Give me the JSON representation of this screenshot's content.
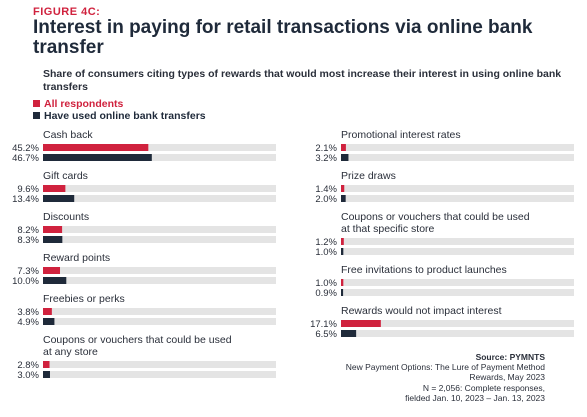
{
  "figure_label": "FIGURE 4C:",
  "chart_data": {
    "type": "bar",
    "title": "Interest in paying for retail transactions via online bank transfer",
    "subtitle": "Share of consumers citing types of rewards that would most increase their interest in using online bank transfers",
    "xlim": [
      0,
      100
    ],
    "legend_position": "top-left",
    "series": [
      {
        "name": "All respondents",
        "color": "#d0223e",
        "values": [
          45.2,
          9.6,
          8.2,
          7.3,
          3.8,
          2.8,
          2.1,
          1.4,
          1.2,
          1.0,
          17.1
        ],
        "value_labels": [
          "45.2%",
          "9.6%",
          "8.2%",
          "7.3%",
          "3.8%",
          "2.8%",
          "2.1%",
          "1.4%",
          "1.2%",
          "1.0%",
          "17.1%"
        ]
      },
      {
        "name": "Have used online bank transfers",
        "color": "#1f2a3a",
        "values": [
          46.7,
          13.4,
          8.3,
          10.0,
          4.9,
          3.0,
          3.2,
          2.0,
          1.0,
          0.9,
          6.5
        ],
        "value_labels": [
          "46.7%",
          "13.4%",
          "8.3%",
          "10.0%",
          "4.9%",
          "3.0%",
          "3.2%",
          "2.0%",
          "1.0%",
          "0.9%",
          "6.5%"
        ]
      }
    ],
    "categories": [
      [
        "Cash back"
      ],
      [
        "Gift cards"
      ],
      [
        "Discounts"
      ],
      [
        "Reward points"
      ],
      [
        "Freebies or perks"
      ],
      [
        "Coupons or vouchers that could be used",
        "at any store"
      ],
      [
        "Promotional interest rates"
      ],
      [
        "Prize draws"
      ],
      [
        "Coupons or vouchers that could be used",
        "at that specific store"
      ],
      [
        "Free invitations to product launches"
      ],
      [
        "Rewards would not impact interest"
      ]
    ],
    "track_color": "#e4e4e4"
  },
  "source": {
    "label": "Source: PYMNTS",
    "lines": [
      "New Payment Options: The Lure of Payment Method",
      "Rewards, May 2023",
      "N = 2,056: Complete responses,",
      "fielded Jan. 10, 2023 – Jan. 13, 2023"
    ]
  }
}
